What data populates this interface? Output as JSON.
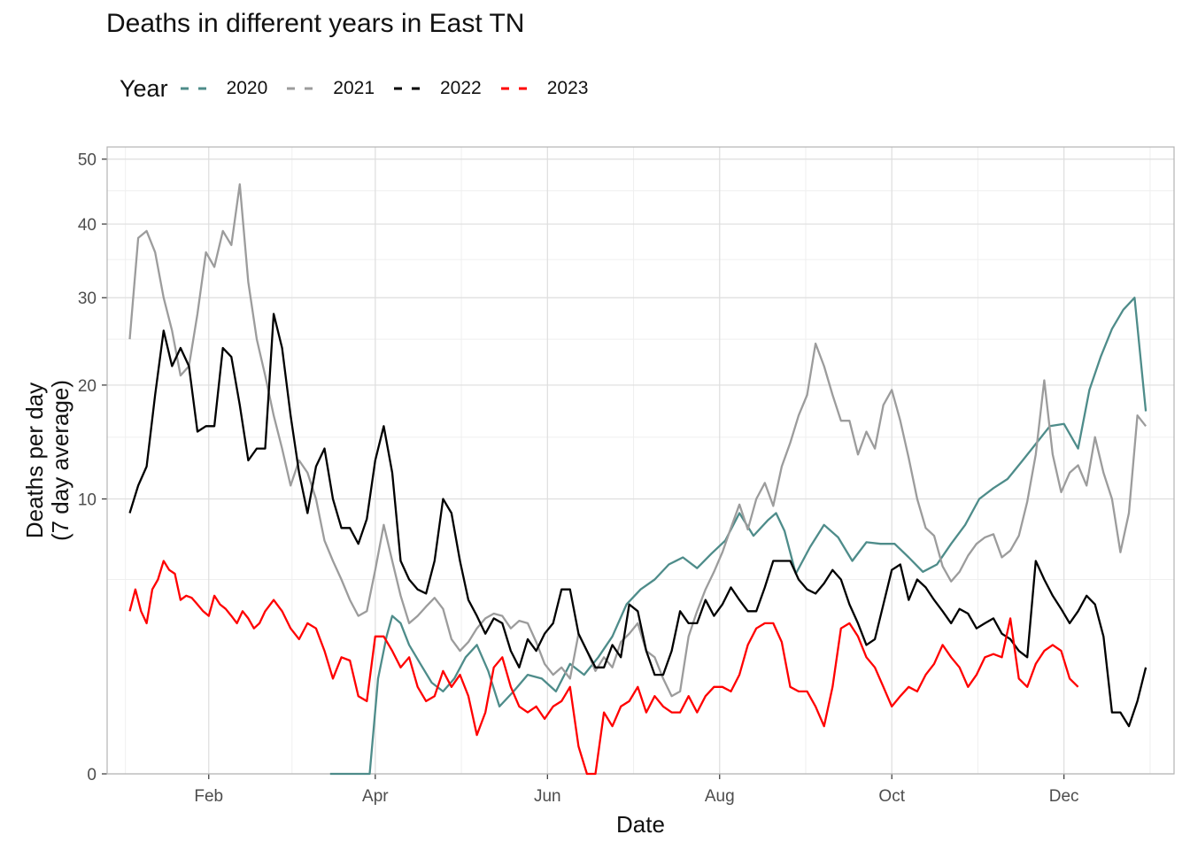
{
  "chart_data": {
    "type": "line",
    "title": "Deaths in different years in East TN",
    "xlabel": "Date",
    "ylabel_lines": [
      "Deaths per day",
      "(7 day average)"
    ],
    "x_tick_labels": [
      "Feb",
      "Apr",
      "Jun",
      "Aug",
      "Oct",
      "Dec"
    ],
    "x_tick_days": [
      32,
      91,
      152,
      213,
      274,
      335
    ],
    "xlim_day_of_year": [
      -4,
      374
    ],
    "y_scale": "sqrt",
    "y_ticks": [
      0,
      10,
      20,
      30,
      40,
      50
    ],
    "ylim": [
      0,
      52
    ],
    "grid": true,
    "legend": {
      "title": "Year",
      "placement": "top-left"
    },
    "series": [
      {
        "name": "2020",
        "color": "#4e8c8a",
        "x": [
          75,
          80,
          85,
          89,
          92,
          95,
          97,
          100,
          103,
          107,
          111,
          115,
          119,
          123,
          127,
          131,
          135,
          140,
          145,
          150,
          155,
          160,
          165,
          170,
          175,
          180,
          185,
          190,
          195,
          200,
          205,
          210,
          215,
          220,
          225,
          230,
          233,
          236,
          240,
          245,
          250,
          255,
          260,
          265,
          270,
          275,
          280,
          285,
          290,
          295,
          300,
          305,
          310,
          315,
          320,
          325,
          330,
          335,
          340,
          344,
          348,
          352,
          356,
          360,
          364
        ],
        "y": [
          0,
          0,
          0,
          0,
          1.2,
          2.5,
          3.3,
          3.0,
          2.2,
          1.6,
          1.1,
          0.9,
          1.2,
          1.8,
          2.2,
          1.4,
          0.6,
          0.9,
          1.3,
          1.2,
          0.9,
          1.6,
          1.3,
          1.8,
          2.5,
          3.8,
          4.5,
          5.0,
          5.8,
          6.2,
          5.6,
          6.4,
          7.2,
          9.0,
          7.5,
          8.5,
          9.0,
          7.8,
          5.3,
          6.8,
          8.2,
          7.4,
          6.0,
          7.1,
          7.0,
          7.0,
          6.2,
          5.4,
          5.8,
          7.0,
          8.2,
          10.0,
          10.8,
          11.5,
          12.9,
          14.4,
          16.0,
          16.2,
          14.0,
          19.5,
          23.0,
          26.2,
          28.5,
          30.0,
          17.4
        ]
      },
      {
        "name": "2021",
        "color": "#9c9c9c",
        "x": [
          4,
          7,
          10,
          13,
          16,
          19,
          22,
          25,
          28,
          31,
          34,
          37,
          40,
          43,
          46,
          49,
          52,
          55,
          58,
          61,
          64,
          67,
          70,
          73,
          76,
          79,
          82,
          85,
          88,
          91,
          94,
          97,
          100,
          103,
          106,
          109,
          112,
          115,
          118,
          121,
          124,
          127,
          130,
          133,
          136,
          139,
          142,
          145,
          148,
          151,
          154,
          157,
          160,
          163,
          166,
          169,
          172,
          175,
          178,
          181,
          184,
          187,
          190,
          193,
          196,
          199,
          202,
          205,
          208,
          211,
          214,
          217,
          220,
          223,
          226,
          229,
          232,
          235,
          238,
          241,
          244,
          247,
          250,
          253,
          256,
          259,
          262,
          265,
          268,
          271,
          274,
          277,
          280,
          283,
          286,
          289,
          292,
          295,
          298,
          301,
          304,
          307,
          310,
          313,
          316,
          319,
          322,
          325,
          328,
          331,
          334,
          337,
          340,
          343,
          346,
          349,
          352,
          355,
          358,
          361,
          364
        ],
        "y": [
          25,
          38,
          39,
          36,
          30,
          26,
          21,
          22,
          28,
          36,
          34,
          39,
          37,
          46,
          32,
          25,
          21,
          17,
          14,
          11,
          13,
          12,
          10,
          7.2,
          6.0,
          5.0,
          4.0,
          3.3,
          3.5,
          5.5,
          8.2,
          6.0,
          4.2,
          3.0,
          3.3,
          3.7,
          4.1,
          3.6,
          2.4,
          2.0,
          2.3,
          2.8,
          3.2,
          3.4,
          3.3,
          2.8,
          3.1,
          3.0,
          2.3,
          1.6,
          1.3,
          1.5,
          1.2,
          2.6,
          2.0,
          1.4,
          1.8,
          1.5,
          2.3,
          2.6,
          3.0,
          2.0,
          1.8,
          1.2,
          0.8,
          0.9,
          2.5,
          3.5,
          4.5,
          5.4,
          6.5,
          8.0,
          9.6,
          7.9,
          10.0,
          11.2,
          9.5,
          12.5,
          14.5,
          17.0,
          19.0,
          24.5,
          22.0,
          19.0,
          16.5,
          16.5,
          13.5,
          15.5,
          14.0,
          18.0,
          19.5,
          16.5,
          13.2,
          10.0,
          8.0,
          7.5,
          5.7,
          4.9,
          5.4,
          6.3,
          7.0,
          7.4,
          7.6,
          6.2,
          6.6,
          7.5,
          9.8,
          13.5,
          20.5,
          13.5,
          10.5,
          12.0,
          12.6,
          11.0,
          15.0,
          12.0,
          10.0,
          6.5,
          9.0,
          17.0,
          16.0
        ]
      },
      {
        "name": "2022",
        "color": "#000000",
        "x": [
          4,
          7,
          10,
          13,
          16,
          19,
          22,
          25,
          28,
          31,
          34,
          37,
          40,
          43,
          46,
          49,
          52,
          55,
          58,
          61,
          64,
          67,
          70,
          73,
          76,
          79,
          82,
          85,
          88,
          91,
          94,
          97,
          100,
          103,
          106,
          109,
          112,
          115,
          118,
          121,
          124,
          127,
          130,
          133,
          136,
          139,
          142,
          145,
          148,
          151,
          154,
          157,
          160,
          163,
          166,
          169,
          172,
          175,
          178,
          181,
          184,
          187,
          190,
          193,
          196,
          199,
          202,
          205,
          208,
          211,
          214,
          217,
          220,
          223,
          226,
          229,
          232,
          235,
          238,
          241,
          244,
          247,
          250,
          253,
          256,
          259,
          262,
          265,
          268,
          271,
          274,
          277,
          280,
          283,
          286,
          289,
          292,
          295,
          298,
          301,
          304,
          307,
          310,
          313,
          316,
          319,
          322,
          325,
          328,
          331,
          334,
          337,
          340,
          343,
          346,
          349,
          352,
          355,
          358,
          361,
          364
        ],
        "y": [
          9,
          11,
          12.5,
          19,
          26,
          22,
          24,
          22,
          15.5,
          16,
          16,
          24,
          23,
          18,
          13,
          14,
          14,
          28,
          24,
          17,
          12,
          9,
          12.5,
          14,
          10,
          8,
          8,
          7,
          8.6,
          13,
          16,
          12,
          6,
          5,
          4.5,
          4.3,
          6,
          10,
          9,
          6,
          4,
          3.3,
          2.6,
          3.2,
          3.0,
          2.0,
          1.5,
          2.4,
          2.0,
          2.6,
          3.0,
          4.5,
          4.5,
          2.6,
          2.0,
          1.5,
          1.5,
          2.2,
          1.8,
          3.8,
          3.5,
          2.0,
          1.3,
          1.3,
          2.0,
          3.5,
          3.0,
          3.0,
          4.0,
          3.3,
          3.8,
          4.6,
          4.0,
          3.5,
          3.5,
          4.6,
          6.0,
          6.0,
          6.0,
          5.0,
          4.5,
          4.3,
          4.8,
          5.5,
          5.0,
          3.8,
          3.0,
          2.2,
          2.4,
          3.8,
          5.5,
          5.8,
          4.0,
          5.0,
          4.6,
          4.0,
          3.5,
          3.0,
          3.6,
          3.4,
          2.8,
          3.0,
          3.2,
          2.6,
          2.4,
          2.0,
          1.8,
          6.0,
          5.0,
          4.2,
          3.6,
          3.0,
          3.5,
          4.2,
          3.8,
          2.5,
          0.5,
          0.5,
          0.3,
          0.7,
          1.5
        ]
      },
      {
        "name": "2023",
        "color": "#ff0000",
        "x": [
          4,
          6,
          8,
          10,
          12,
          14,
          16,
          18,
          20,
          22,
          24,
          26,
          28,
          30,
          32,
          34,
          36,
          38,
          40,
          42,
          44,
          46,
          48,
          50,
          52,
          55,
          58,
          61,
          64,
          67,
          70,
          73,
          76,
          79,
          82,
          85,
          88,
          91,
          94,
          97,
          100,
          103,
          106,
          109,
          112,
          115,
          118,
          121,
          124,
          127,
          130,
          133,
          136,
          139,
          142,
          145,
          148,
          151,
          154,
          157,
          160,
          163,
          166,
          169,
          172,
          175,
          178,
          181,
          184,
          187,
          190,
          193,
          196,
          199,
          202,
          205,
          208,
          211,
          214,
          217,
          220,
          223,
          226,
          229,
          232,
          235,
          238,
          241,
          244,
          247,
          250,
          253,
          256,
          259,
          262,
          265,
          268,
          271,
          274,
          277,
          280,
          283,
          286,
          289,
          292,
          295,
          298,
          301,
          304,
          307,
          310,
          313,
          316,
          319,
          322,
          325,
          328,
          331,
          334,
          337,
          340
        ],
        "y": [
          3.5,
          4.5,
          3.5,
          3.0,
          4.5,
          5.0,
          6.0,
          5.5,
          5.3,
          4.0,
          4.2,
          4.1,
          3.8,
          3.5,
          3.3,
          4.2,
          3.8,
          3.6,
          3.3,
          3.0,
          3.5,
          3.2,
          2.8,
          3.0,
          3.5,
          4.0,
          3.5,
          2.8,
          2.4,
          3.0,
          2.8,
          2.0,
          1.2,
          1.8,
          1.7,
          0.8,
          0.7,
          2.5,
          2.5,
          2.0,
          1.5,
          1.8,
          1.0,
          0.7,
          0.8,
          1.4,
          1.0,
          1.3,
          0.8,
          0.2,
          0.5,
          1.5,
          1.8,
          1.0,
          0.6,
          0.5,
          0.6,
          0.4,
          0.6,
          0.7,
          1.0,
          0.1,
          0.0,
          0.0,
          0.5,
          0.3,
          0.6,
          0.7,
          1.0,
          0.5,
          0.8,
          0.6,
          0.5,
          0.5,
          0.8,
          0.5,
          0.8,
          1.0,
          1.0,
          0.9,
          1.3,
          2.2,
          2.8,
          3.0,
          3.0,
          2.3,
          1.0,
          0.9,
          0.9,
          0.6,
          0.3,
          1.0,
          2.8,
          3.0,
          2.5,
          1.8,
          1.5,
          1.0,
          0.6,
          0.8,
          1.0,
          0.9,
          1.3,
          1.6,
          2.2,
          1.8,
          1.5,
          1.0,
          1.3,
          1.8,
          1.9,
          1.8,
          3.2,
          1.2,
          1.0,
          1.6,
          2.0,
          2.2,
          2.0,
          1.2,
          1.0
        ]
      }
    ]
  }
}
